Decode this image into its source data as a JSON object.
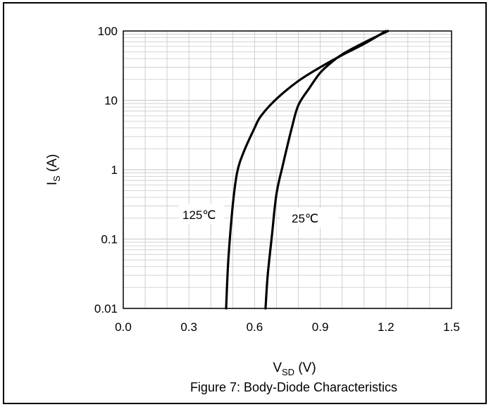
{
  "chart_data": {
    "type": "line",
    "title": "Figure 7: Body-Diode Characteristics",
    "xlabel": {
      "main": "V",
      "sub": "SD",
      "unit": " (V)"
    },
    "ylabel": {
      "main": "I",
      "sub": "S",
      "unit": " (A)"
    },
    "x_scale": "linear",
    "y_scale": "log",
    "xlim": [
      0.0,
      1.5
    ],
    "ylim": [
      0.01,
      100
    ],
    "x_ticks": [
      0.0,
      0.3,
      0.6,
      0.9,
      1.2,
      1.5
    ],
    "x_tick_labels": [
      "0.0",
      "0.3",
      "0.6",
      "0.9",
      "1.2",
      "1.5"
    ],
    "y_ticks": [
      0.01,
      0.1,
      1,
      10,
      100
    ],
    "y_tick_labels": [
      "0.01",
      "0.1",
      "1",
      "10",
      "100"
    ],
    "grid": true,
    "colors": {
      "curve": "#000000",
      "grid": "#d0d0d0",
      "axis": "#000000"
    },
    "series": [
      {
        "name": "125℃",
        "x": [
          0.47,
          0.48,
          0.5,
          0.52,
          0.55,
          0.6,
          0.63,
          0.7,
          0.8,
          0.9,
          1.0,
          1.1,
          1.2
        ],
        "y": [
          0.01,
          0.05,
          0.3,
          0.9,
          1.8,
          4.0,
          6.0,
          10.5,
          19.0,
          30.0,
          45.0,
          65.0,
          100
        ]
      },
      {
        "name": "25℃",
        "x": [
          0.65,
          0.66,
          0.68,
          0.7,
          0.73,
          0.77,
          0.8,
          0.85,
          0.9,
          0.95,
          1.0,
          1.1,
          1.21
        ],
        "y": [
          0.01,
          0.03,
          0.12,
          0.45,
          1.2,
          4.0,
          8.5,
          15.0,
          25.0,
          35.0,
          46.0,
          68.0,
          100
        ]
      }
    ]
  }
}
